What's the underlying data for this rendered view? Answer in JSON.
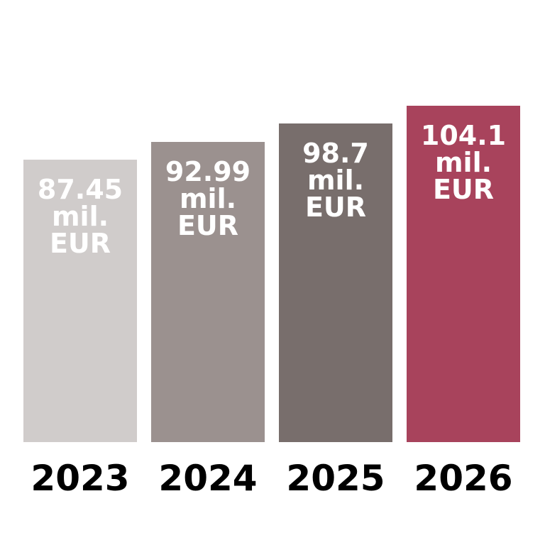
{
  "chart_data": {
    "type": "bar",
    "categories": [
      "2023",
      "2024",
      "2025",
      "2026"
    ],
    "values": [
      87.45,
      92.99,
      98.7,
      104.1
    ],
    "value_labels": [
      "87.45 mil. EUR",
      "92.99 mil. EUR",
      "98.7 mil. EUR",
      "104.1 mil. EUR"
    ],
    "colors": [
      "#d0cccb",
      "#9b918f",
      "#786e6c",
      "#a8435c"
    ]
  }
}
